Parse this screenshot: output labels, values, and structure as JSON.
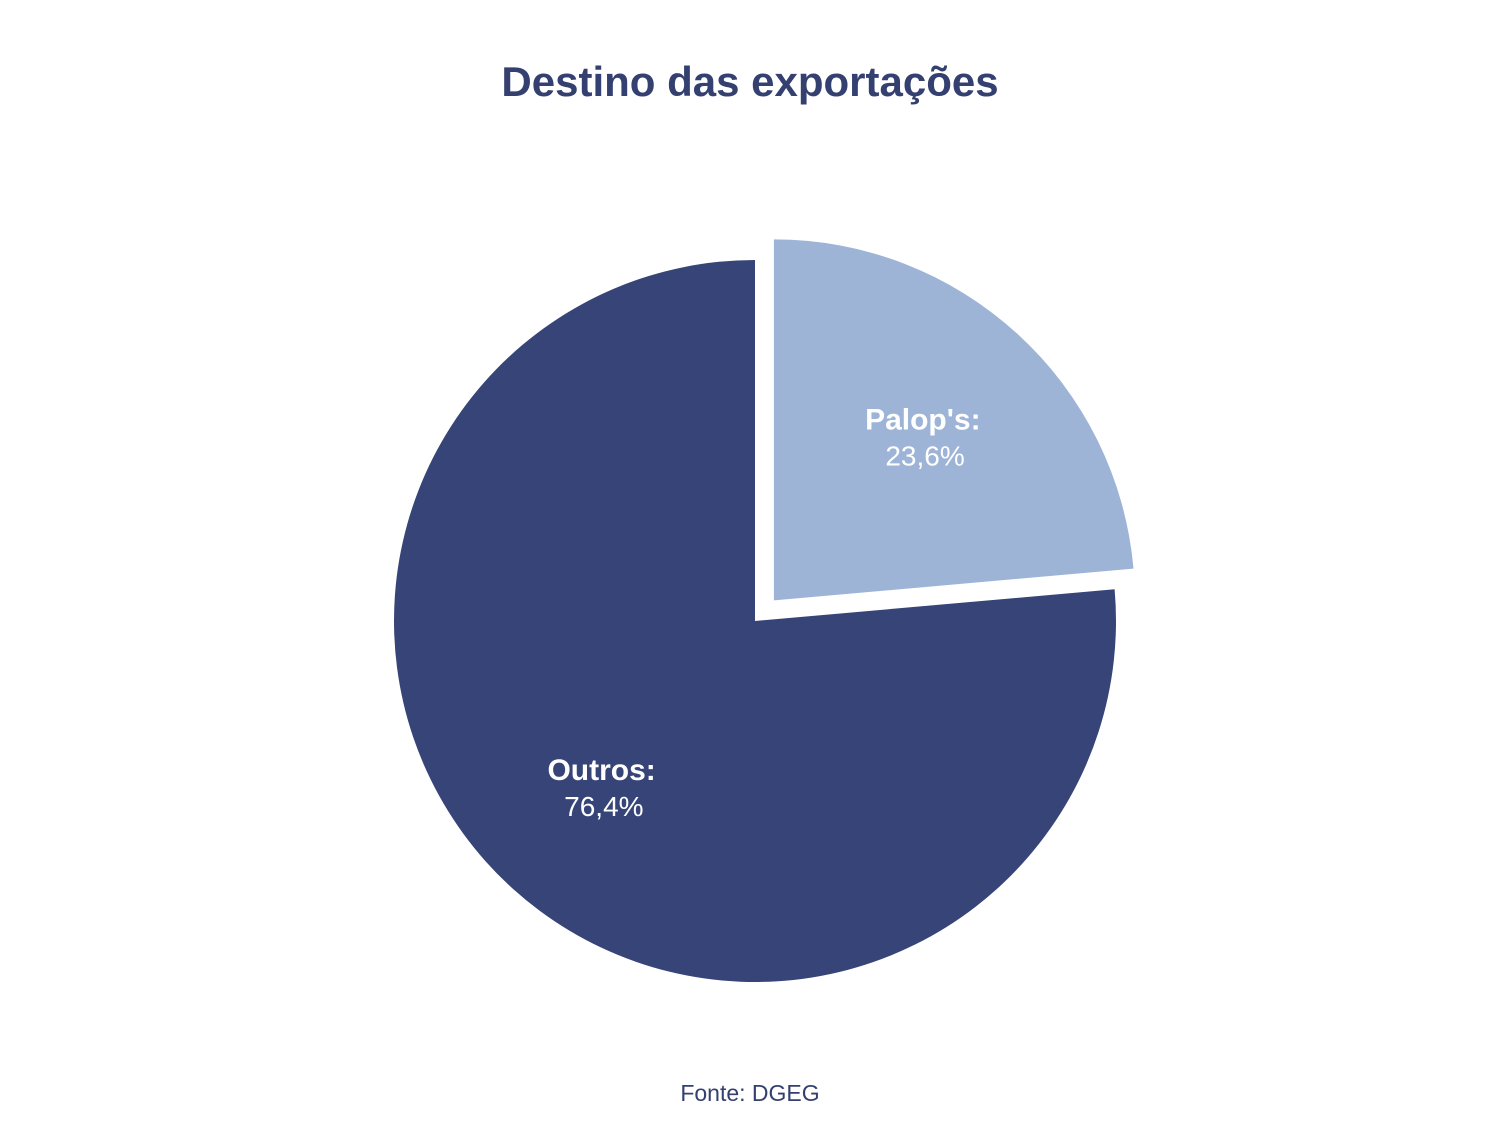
{
  "chart_data": {
    "type": "pie",
    "title": "Destino das exportações",
    "slices": [
      {
        "label": "Palop's:",
        "value": 23.6,
        "value_text": "23,6%",
        "color": "#9db4d7",
        "exploded": true
      },
      {
        "label": "Outros:",
        "value": 76.4,
        "value_text": "76,4%",
        "color": "#364478",
        "exploded": false
      }
    ],
    "source": "Fonte: DGEG"
  }
}
